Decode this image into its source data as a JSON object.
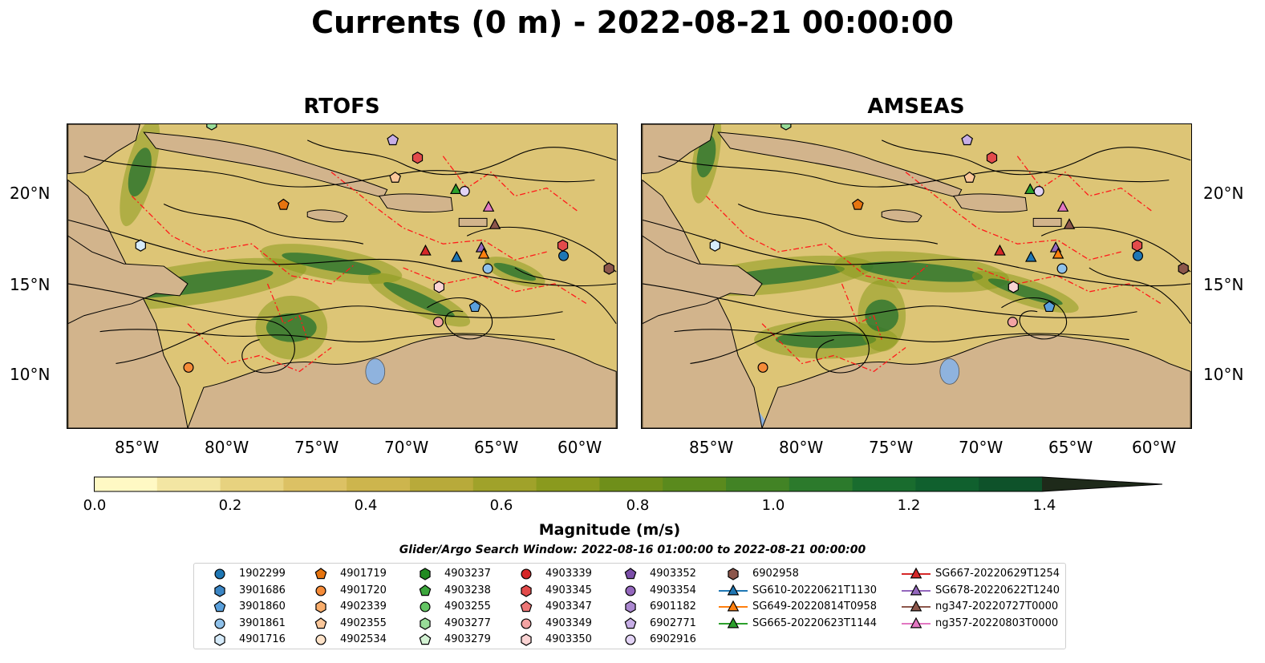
{
  "title": "Currents (0 m) - 2022-08-21 00:00:00",
  "panels": [
    {
      "title": "RTOFS",
      "ocean_color": "#d9c070",
      "land_color": "#d2b48c"
    },
    {
      "title": "AMSEAS",
      "ocean_color": "#d9c070",
      "land_color": "#d2b48c"
    }
  ],
  "axes": {
    "lon_labels": [
      "85°W",
      "80°W",
      "75°W",
      "70°W",
      "65°W",
      "60°W"
    ],
    "lat_labels": [
      "20°N",
      "15°N",
      "10°N"
    ]
  },
  "colorbar": {
    "label": "Magnitude (m/s)",
    "ticks": [
      "0.0",
      "0.2",
      "0.4",
      "0.6",
      "0.8",
      "1.0",
      "1.2",
      "1.4"
    ],
    "range": [
      0,
      1.5
    ],
    "extend": "max",
    "colors": [
      "#fff9c4",
      "#f3e6a3",
      "#e7d27f",
      "#dcc164",
      "#cdb54d",
      "#b8aa3a",
      "#a0a22a",
      "#8a9a1e",
      "#6f8f1a",
      "#5a8a1d",
      "#428325",
      "#2c7a2c",
      "#196c2e",
      "#10602e",
      "#0e522a",
      "#134326",
      "#1b3521",
      "#1e2a1a"
    ]
  },
  "search_window": "Glider/Argo Search Window: 2022-08-16 01:00:00 to 2022-08-21 00:00:00",
  "legend": {
    "columns": [
      [
        {
          "label": "1902299",
          "marker": "circle",
          "color": "#1f77b4"
        },
        {
          "label": "3901686",
          "marker": "hexagon",
          "color": "#3b86c5"
        },
        {
          "label": "3901860",
          "marker": "pentagon",
          "color": "#5aa0dc"
        },
        {
          "label": "3901861",
          "marker": "circle",
          "color": "#8fc1ea"
        },
        {
          "label": "4901716",
          "marker": "hexagon",
          "color": "#d6ebfa"
        }
      ],
      [
        {
          "label": "4901719",
          "marker": "pentagon",
          "color": "#e6740f"
        },
        {
          "label": "4901720",
          "marker": "circle",
          "color": "#f58b38"
        },
        {
          "label": "4902339",
          "marker": "hexagon",
          "color": "#f9ad6b"
        },
        {
          "label": "4902355",
          "marker": "pentagon",
          "color": "#fbc79a"
        },
        {
          "label": "4902534",
          "marker": "circle",
          "color": "#fde2c8"
        }
      ],
      [
        {
          "label": "4903237",
          "marker": "hexagon",
          "color": "#218a21"
        },
        {
          "label": "4903238",
          "marker": "pentagon",
          "color": "#3ca63c"
        },
        {
          "label": "4903255",
          "marker": "circle",
          "color": "#64c564"
        },
        {
          "label": "4903277",
          "marker": "hexagon",
          "color": "#98dc98"
        },
        {
          "label": "4903279",
          "marker": "pentagon",
          "color": "#d3f2d3"
        }
      ],
      [
        {
          "label": "4903339",
          "marker": "circle",
          "color": "#d62728"
        },
        {
          "label": "4903345",
          "marker": "hexagon",
          "color": "#e34b4b"
        },
        {
          "label": "4903347",
          "marker": "pentagon",
          "color": "#ec7676"
        },
        {
          "label": "4903349",
          "marker": "circle",
          "color": "#f3a3a3"
        },
        {
          "label": "4903350",
          "marker": "hexagon",
          "color": "#fad3d3"
        }
      ],
      [
        {
          "label": "4903352",
          "marker": "pentagon",
          "color": "#7b4ea8"
        },
        {
          "label": "4903354",
          "marker": "circle",
          "color": "#9467bd"
        },
        {
          "label": "6901182",
          "marker": "hexagon",
          "color": "#ab88d0"
        },
        {
          "label": "6902771",
          "marker": "pentagon",
          "color": "#c7aee6"
        },
        {
          "label": "6902916",
          "marker": "circle",
          "color": "#e2d3f5"
        }
      ],
      [
        {
          "label": "6902958",
          "marker": "hexagon",
          "color": "#8c564b"
        },
        {
          "label": "SG610-20220621T1130",
          "marker": "triangle",
          "color": "#1f77b4"
        },
        {
          "label": "SG649-20220814T0958",
          "marker": "triangle",
          "color": "#ff7f0e"
        },
        {
          "label": "SG665-20220623T1144",
          "marker": "triangle",
          "color": "#2ca02c"
        }
      ],
      [
        {
          "label": "SG667-20220629T1254",
          "marker": "triangle",
          "color": "#d62728"
        },
        {
          "label": "SG678-20220622T1240",
          "marker": "triangle",
          "color": "#9467bd"
        },
        {
          "label": "ng347-20220727T0000",
          "marker": "triangle",
          "color": "#8c564b"
        },
        {
          "label": "ng357-20220803T0000",
          "marker": "triangle",
          "color": "#e377c2"
        }
      ]
    ]
  }
}
